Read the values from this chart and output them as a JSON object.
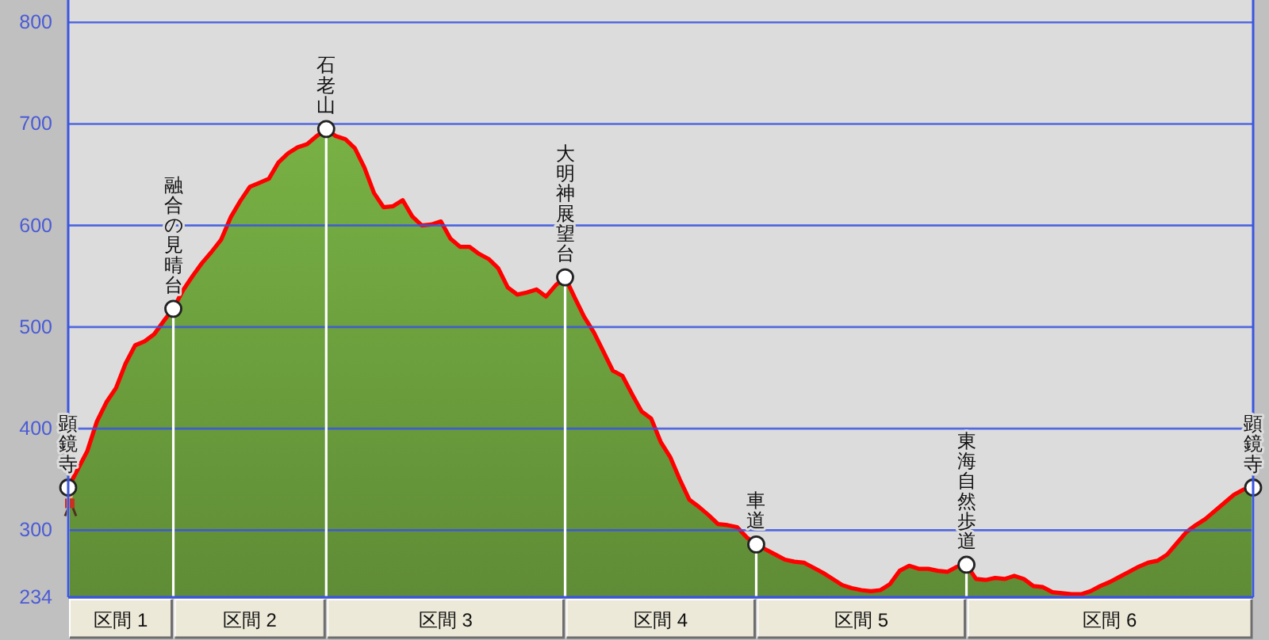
{
  "chart_data": {
    "type": "area",
    "categories": [
      null,
      null,
      null,
      null,
      null,
      null,
      null,
      null,
      null,
      null,
      null,
      null,
      null,
      null,
      null,
      null,
      null,
      null,
      null,
      null,
      null,
      null,
      null,
      null,
      null,
      null,
      null,
      null,
      null,
      null,
      null,
      null,
      null,
      null,
      null,
      null,
      null,
      null,
      null,
      null,
      null,
      null,
      null,
      null,
      null,
      null,
      null,
      null,
      null,
      null,
      null,
      null,
      null,
      null,
      null,
      null,
      null,
      null,
      null,
      null,
      null,
      null,
      null,
      null,
      null,
      null,
      null,
      null,
      null,
      null,
      null,
      null,
      null,
      null,
      null,
      null,
      null,
      null,
      null,
      null,
      null,
      null,
      null,
      null,
      null,
      null,
      null,
      null,
      null,
      null,
      null,
      null,
      null,
      null,
      null,
      null,
      null,
      null,
      null,
      null,
      null,
      null,
      null,
      null,
      null,
      null,
      null,
      null,
      null,
      null,
      null,
      null,
      null,
      null,
      null,
      null,
      null,
      null,
      null,
      null,
      null,
      null,
      null,
      null,
      null
    ],
    "series": [
      {
        "color": "#6a9c3c",
        "values": [
          342,
          360,
          378,
          407,
          426,
          440,
          464,
          482,
          486,
          493,
          506,
          518,
          536,
          550,
          563,
          574,
          586,
          608,
          624,
          638,
          642,
          646,
          662,
          671,
          677,
          680,
          688,
          695,
          688,
          685,
          676,
          657,
          632,
          618,
          619,
          625,
          609,
          600,
          601,
          604,
          587,
          579,
          579,
          572,
          567,
          558,
          539,
          532,
          534,
          537,
          530,
          541,
          549,
          529,
          510,
          495,
          476,
          457,
          452,
          434,
          417,
          410,
          387,
          372,
          350,
          330,
          323,
          315,
          306,
          305,
          303,
          293,
          286,
          281,
          276,
          271,
          269,
          268,
          263,
          258,
          252,
          246,
          243,
          241,
          240,
          241,
          247,
          260,
          265,
          262,
          262,
          260,
          259,
          264,
          266,
          252,
          251,
          253,
          252,
          255,
          252,
          245,
          244,
          239,
          238,
          237,
          237,
          240,
          245,
          249,
          254,
          259,
          264,
          268,
          270,
          276,
          287,
          298,
          305,
          311,
          319,
          327,
          335,
          340,
          342
        ]
      },
      {
        "type": "lollipop",
        "color": "#ffffff",
        "marker": "circle",
        "values": [
          342,
          null,
          null,
          null,
          null,
          null,
          null,
          null,
          null,
          null,
          null,
          518,
          null,
          null,
          null,
          null,
          null,
          null,
          null,
          null,
          null,
          null,
          null,
          null,
          null,
          null,
          null,
          695,
          null,
          null,
          null,
          null,
          null,
          null,
          null,
          null,
          null,
          null,
          null,
          null,
          null,
          null,
          null,
          null,
          null,
          null,
          null,
          null,
          null,
          null,
          null,
          null,
          549,
          null,
          null,
          null,
          null,
          null,
          null,
          null,
          null,
          null,
          null,
          null,
          null,
          null,
          null,
          null,
          null,
          null,
          null,
          null,
          286,
          null,
          null,
          null,
          null,
          null,
          null,
          null,
          null,
          null,
          null,
          null,
          null,
          null,
          null,
          null,
          null,
          null,
          null,
          null,
          null,
          null,
          266,
          null,
          null,
          null,
          null,
          null,
          null,
          null,
          null,
          null,
          null,
          null,
          null,
          null,
          null,
          null,
          null,
          null,
          null,
          null,
          null,
          null,
          null,
          null,
          null,
          null,
          null,
          null,
          null,
          null,
          342
        ],
        "value_labels": [
          "顕鏡寺",
          null,
          null,
          null,
          null,
          null,
          null,
          null,
          null,
          null,
          null,
          "融合の見晴台",
          null,
          null,
          null,
          null,
          null,
          null,
          null,
          null,
          null,
          null,
          null,
          null,
          null,
          null,
          null,
          "石老山",
          null,
          null,
          null,
          null,
          null,
          null,
          null,
          null,
          null,
          null,
          null,
          null,
          null,
          null,
          null,
          null,
          null,
          null,
          null,
          null,
          null,
          null,
          null,
          null,
          "大明神展望台",
          null,
          null,
          null,
          null,
          null,
          null,
          null,
          null,
          null,
          null,
          null,
          null,
          null,
          null,
          null,
          null,
          null,
          null,
          null,
          "車道",
          null,
          null,
          null,
          null,
          null,
          null,
          null,
          null,
          null,
          null,
          null,
          null,
          null,
          null,
          null,
          null,
          null,
          null,
          null,
          null,
          null,
          "東海自然歩道",
          null,
          null,
          null,
          null,
          null,
          null,
          null,
          null,
          null,
          null,
          null,
          null,
          null,
          null,
          null,
          null,
          null,
          null,
          null,
          null,
          null,
          null,
          null,
          null,
          null,
          null,
          null,
          null,
          null,
          "顕鏡寺"
        ]
      }
    ],
    "ylim": [
      234,
      822
    ],
    "yticks": [
      234,
      300,
      400,
      500,
      600,
      700,
      800
    ],
    "grid": "y",
    "tick_labels": "y",
    "annotations": [
      "区間 1",
      "区間 2",
      "区間 3",
      "区間 4",
      "区間 5",
      "区間 6"
    ]
  }
}
